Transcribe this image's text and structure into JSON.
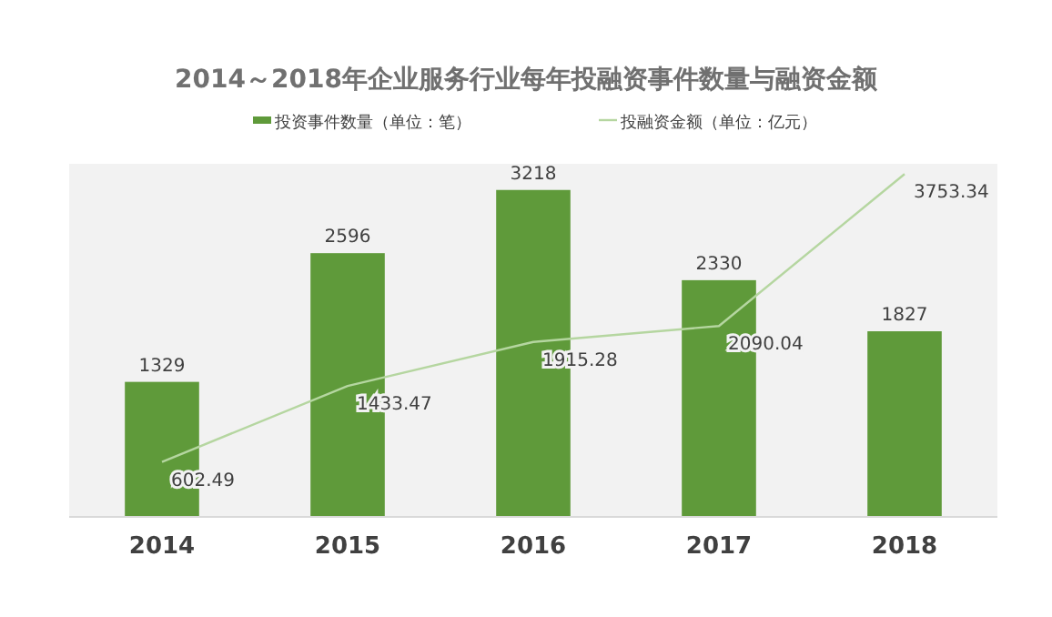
{
  "chart_data": {
    "type": "bar",
    "title": "2014～2018年企业服务行业每年投融资事件数量与融资金额",
    "categories": [
      "2014",
      "2015",
      "2016",
      "2017",
      "2018"
    ],
    "series": [
      {
        "name": "投资事件数量（单位：笔）",
        "color": "#5f9a3a",
        "values": [
          1329,
          2596,
          3218,
          2330,
          1827
        ]
      },
      {
        "name": "投融资金额（单位：亿元）",
        "type": "line",
        "axis": "y2",
        "color": "#b5d6a0",
        "values": [
          602.49,
          1433.47,
          1915.28,
          2090.04,
          3753.34
        ]
      }
    ],
    "data_labels": true,
    "legend": "top",
    "grid": false
  }
}
